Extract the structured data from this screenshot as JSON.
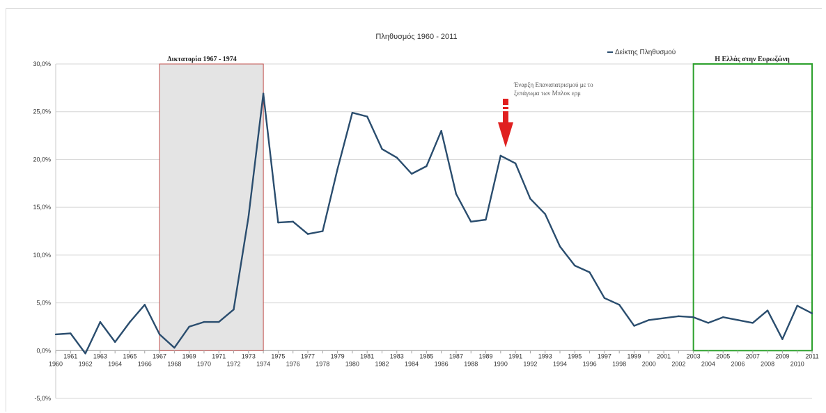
{
  "chart_data": {
    "type": "line",
    "title": "Πληθυσμός 1960 - 2011",
    "legend": {
      "label": "Δείκτης Πληθυσμού",
      "position": "top-right"
    },
    "x": [
      1960,
      1961,
      1962,
      1963,
      1964,
      1965,
      1966,
      1967,
      1968,
      1969,
      1970,
      1971,
      1972,
      1973,
      1974,
      1975,
      1976,
      1977,
      1978,
      1979,
      1980,
      1981,
      1982,
      1983,
      1984,
      1985,
      1986,
      1987,
      1988,
      1989,
      1990,
      1991,
      1992,
      1993,
      1994,
      1995,
      1996,
      1997,
      1998,
      1999,
      2000,
      2001,
      2002,
      2003,
      2004,
      2005,
      2006,
      2007,
      2008,
      2009,
      2010,
      2011
    ],
    "series": [
      {
        "name": "Δείκτης Πληθυσμού",
        "color": "#2a4d6e",
        "values": [
          1.7,
          1.8,
          -0.3,
          3.0,
          0.9,
          3.0,
          4.8,
          1.7,
          0.3,
          2.5,
          3.0,
          3.0,
          4.3,
          14.0,
          26.9,
          13.4,
          13.5,
          12.2,
          12.5,
          19.0,
          24.9,
          24.5,
          21.1,
          20.2,
          18.5,
          19.3,
          23.0,
          16.4,
          13.5,
          13.7,
          20.4,
          19.6,
          15.9,
          14.3,
          10.9,
          8.9,
          8.2,
          5.5,
          4.8,
          2.6,
          3.2,
          3.4,
          3.6,
          3.5,
          2.9,
          3.5,
          3.2,
          2.9,
          4.2,
          1.2,
          4.7,
          3.9
        ]
      }
    ],
    "y_ticks": [
      "30,0%",
      "25,0%",
      "20,0%",
      "15,0%",
      "10,0%",
      "5,0%",
      "0,0%",
      "-5,0%"
    ],
    "ylim": [
      -5,
      30
    ],
    "grid": true,
    "annotations": {
      "dictatorship": {
        "label": "Δικτατορία 1967 - 1974",
        "from": 1967,
        "to": 1974,
        "color": "#c0504d"
      },
      "eurozone": {
        "label": "Η Ελλάς στην Ευρωζώνη",
        "from": 2003,
        "to": 2011,
        "color": "#2ca02c"
      },
      "repatriation": {
        "label_line1": "Έναρξη Επαναπατρισμού με το",
        "label_line2": "ξεπάγωμα των Μπλοκ ερμ",
        "year": 1990,
        "color": "#e02020"
      }
    }
  }
}
